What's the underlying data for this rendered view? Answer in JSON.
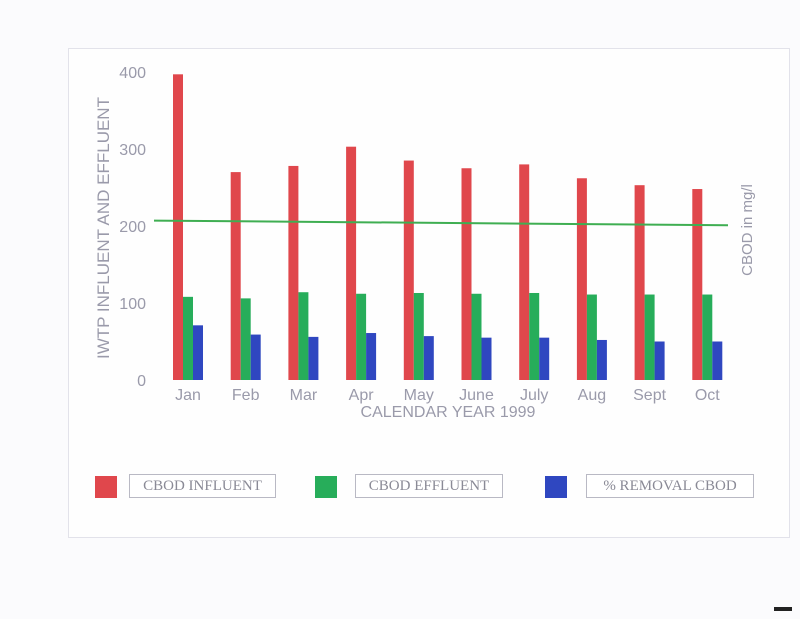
{
  "header": {
    "faint_title": ""
  },
  "colors": {
    "influent": "#e0474c",
    "effluent": "#27ad5a",
    "removal": "#2f47c0",
    "line": "#3fae52",
    "axis_text": "#9a9aaa"
  },
  "chart_data": {
    "type": "bar",
    "title": "",
    "xlabel": "CALENDAR YEAR 1999",
    "ylabel": "IWTP INFLUENT AND EFFLUENT",
    "ylabel_right": "CBOD in mg/l",
    "ylim": [
      0,
      400
    ],
    "yticks": [
      "0",
      "100",
      "200",
      "300",
      "400"
    ],
    "grid": false,
    "legend_position": "bottom",
    "categories": [
      "Jan",
      "Feb",
      "Mar",
      "Apr",
      "May",
      "June",
      "July",
      "Aug",
      "Sept",
      "Oct"
    ],
    "series": [
      {
        "name": "CBOD INFLUENT",
        "values": [
          397,
          270,
          278,
          303,
          285,
          275,
          280,
          262,
          253,
          248
        ]
      },
      {
        "name": "CBOD EFFLUENT",
        "values": [
          108,
          106,
          114,
          112,
          113,
          112,
          113,
          111,
          111,
          111
        ]
      },
      {
        "name": "% REMOVAL CBOD",
        "values": [
          71,
          59,
          56,
          61,
          57,
          55,
          55,
          52,
          50,
          50
        ]
      }
    ],
    "reference_line": {
      "values": [
        207,
        201
      ]
    }
  },
  "legend": {
    "influent_label": "CBOD INFLUENT",
    "effluent_label": "CBOD EFFLUENT",
    "removal_label": "% REMOVAL CBOD"
  }
}
